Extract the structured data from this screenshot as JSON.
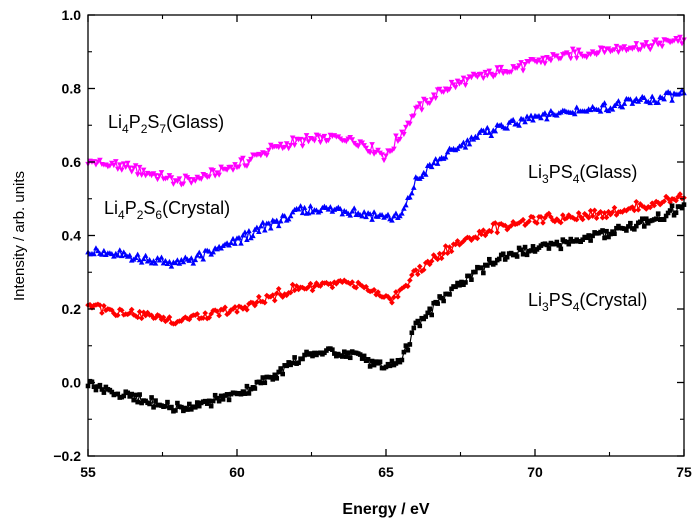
{
  "chart_data": {
    "type": "line",
    "xlabel": "Energy / eV",
    "ylabel": "Intensity / arb. units",
    "xlim": [
      55,
      75
    ],
    "ylim": [
      -0.2,
      1.0
    ],
    "x_ticks": [
      "55",
      "60",
      "65",
      "70",
      "75"
    ],
    "y_ticks": [
      "−0.2",
      "0.0",
      "0.2",
      "0.4",
      "0.6",
      "0.8",
      "1.0"
    ],
    "grid": false,
    "annotations": [
      {
        "base": "Li",
        "parts": [
          [
            "Li",
            ""
          ],
          [
            "4",
            "sub"
          ],
          [
            "P",
            ""
          ],
          [
            "2",
            "sub"
          ],
          [
            "S",
            ""
          ],
          [
            "7",
            "sub"
          ],
          [
            "(Glass)",
            ""
          ]
        ]
      },
      {
        "base": "Li",
        "parts": [
          [
            "Li",
            ""
          ],
          [
            "4",
            "sub"
          ],
          [
            "P",
            ""
          ],
          [
            "2",
            "sub"
          ],
          [
            "S",
            ""
          ],
          [
            "6",
            "sub"
          ],
          [
            "(Crystal)",
            ""
          ]
        ]
      },
      {
        "base": "Li",
        "parts": [
          [
            "Li",
            ""
          ],
          [
            "3",
            "sub"
          ],
          [
            "PS",
            ""
          ],
          [
            "4",
            "sub"
          ],
          [
            "(Glass)",
            ""
          ]
        ]
      },
      {
        "base": "Li",
        "parts": [
          [
            "Li",
            ""
          ],
          [
            "3",
            "sub"
          ],
          [
            "PS",
            ""
          ],
          [
            "4",
            "sub"
          ],
          [
            "(Crystal)",
            ""
          ]
        ]
      }
    ],
    "series": [
      {
        "color": "#ff00ff",
        "marker": "triangle-down",
        "x": [
          55,
          56,
          57,
          58,
          59,
          60,
          61,
          62,
          63,
          64,
          65,
          66,
          67,
          68,
          69,
          70,
          71,
          72,
          73,
          74,
          75
        ],
        "y": [
          0.6,
          0.59,
          0.57,
          0.545,
          0.56,
          0.59,
          0.63,
          0.655,
          0.665,
          0.66,
          0.615,
          0.74,
          0.8,
          0.83,
          0.85,
          0.87,
          0.89,
          0.9,
          0.91,
          0.92,
          0.935
        ]
      },
      {
        "color": "#0000ff",
        "marker": "triangle-up",
        "x": [
          55,
          56,
          57,
          58,
          59,
          60,
          61,
          62,
          63,
          64,
          65,
          65.5,
          66,
          67,
          68,
          69,
          70,
          71,
          72,
          73,
          74,
          75
        ],
        "y": [
          0.36,
          0.345,
          0.335,
          0.325,
          0.35,
          0.385,
          0.425,
          0.465,
          0.475,
          0.465,
          0.45,
          0.45,
          0.55,
          0.62,
          0.67,
          0.7,
          0.72,
          0.735,
          0.745,
          0.76,
          0.77,
          0.785
        ]
      },
      {
        "color": "#ff0000",
        "marker": "diamond",
        "x": [
          55,
          56,
          57,
          58,
          59,
          60,
          61,
          62,
          63,
          64,
          65,
          65.5,
          66,
          67,
          68,
          69,
          70,
          71,
          72,
          73,
          74,
          75
        ],
        "y": [
          0.21,
          0.195,
          0.18,
          0.17,
          0.18,
          0.2,
          0.23,
          0.255,
          0.27,
          0.265,
          0.225,
          0.245,
          0.3,
          0.36,
          0.4,
          0.43,
          0.44,
          0.45,
          0.46,
          0.47,
          0.485,
          0.51
        ]
      },
      {
        "color": "#000000",
        "marker": "square",
        "x": [
          55,
          56,
          57,
          58,
          59,
          60,
          61,
          62,
          63,
          64,
          65,
          65.5,
          66,
          67,
          68,
          69,
          70,
          71,
          72,
          73,
          74,
          75
        ],
        "y": [
          0.0,
          -0.03,
          -0.055,
          -0.07,
          -0.055,
          -0.03,
          0.01,
          0.06,
          0.085,
          0.075,
          0.04,
          0.06,
          0.15,
          0.24,
          0.3,
          0.345,
          0.365,
          0.38,
          0.4,
          0.42,
          0.445,
          0.48
        ]
      }
    ]
  }
}
